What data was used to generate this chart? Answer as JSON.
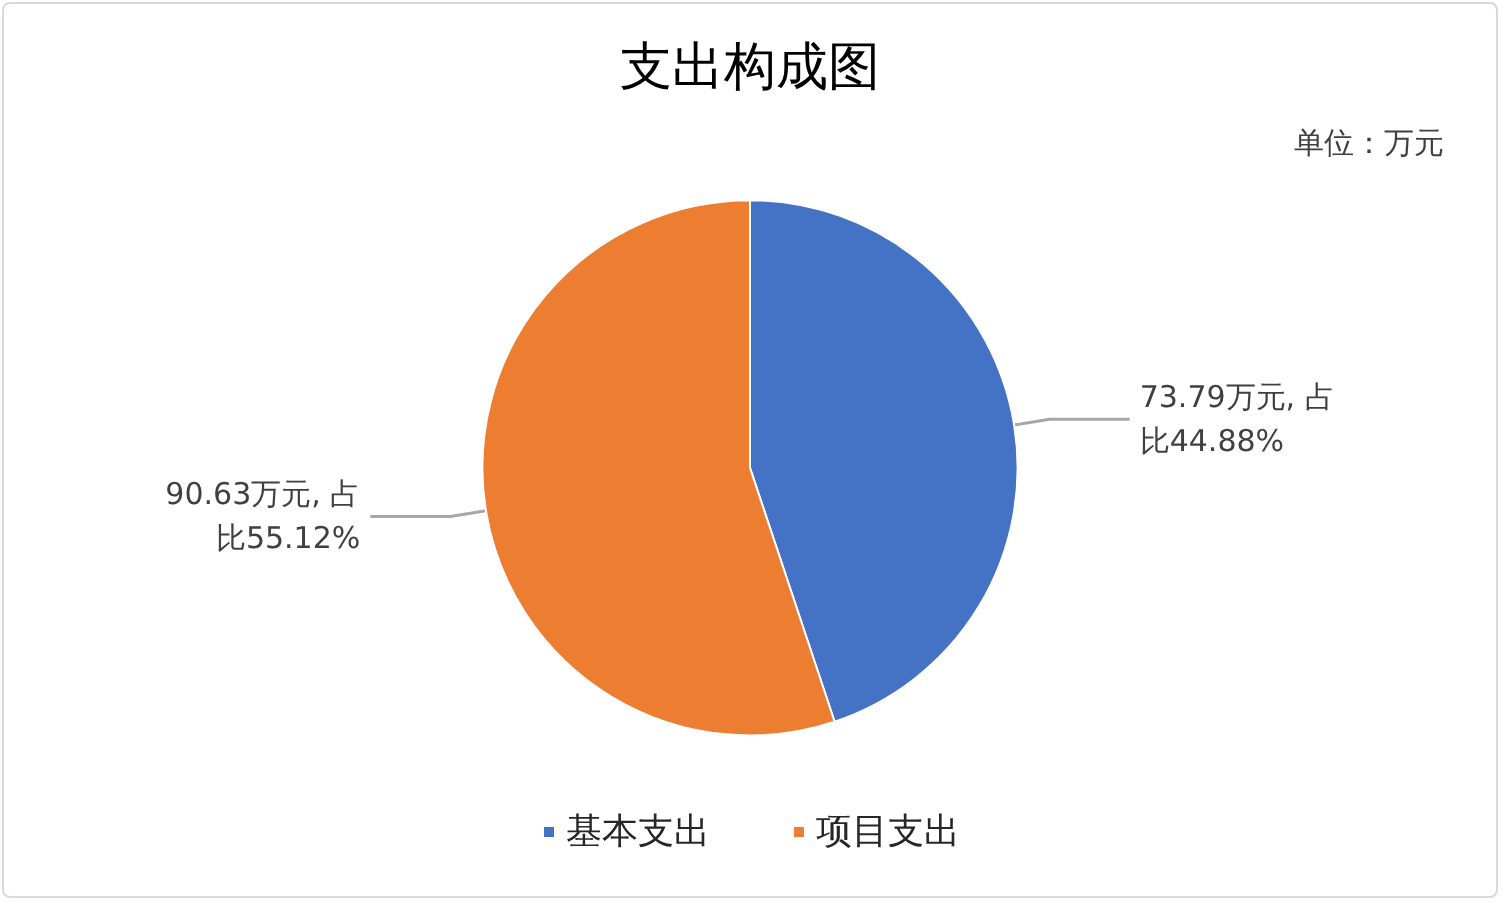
{
  "chart_data": {
    "type": "pie",
    "title": "支出构成图",
    "categories": [
      "基本支出",
      "项目支出"
    ],
    "values": [
      73.79,
      90.63
    ],
    "colors": [
      "#4472c4",
      "#ed7d31"
    ],
    "value_labels": [
      "73.79万元, 占比44.88%",
      "90.63万元, 占比55.12%"
    ],
    "annotations": [
      "单位：万元"
    ],
    "legend": "bottom"
  }
}
